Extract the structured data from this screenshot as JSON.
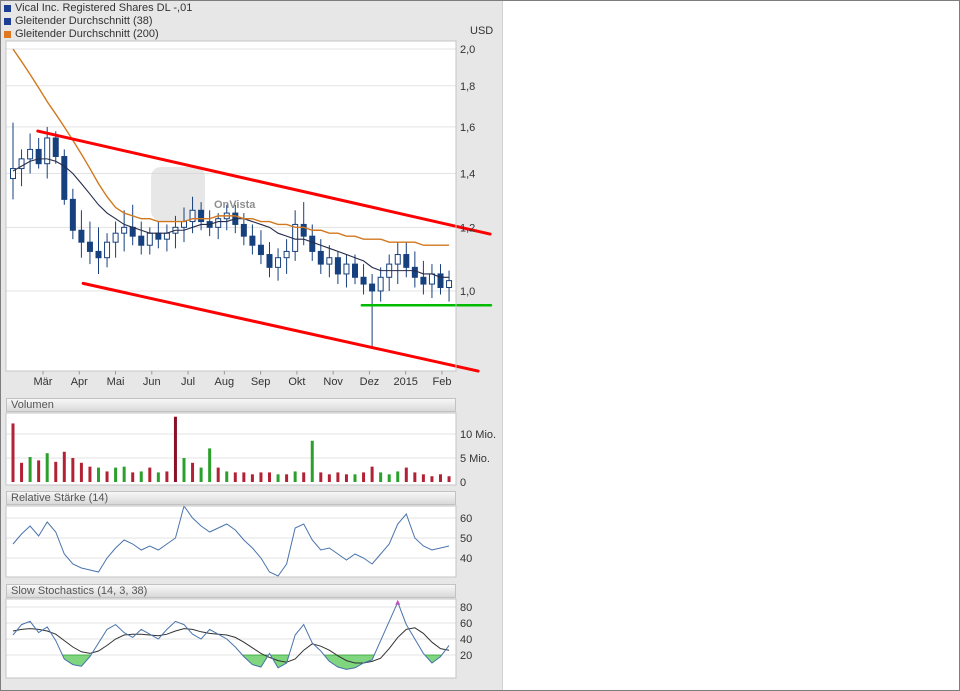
{
  "watermark": "OnVista",
  "legend": [
    {
      "label": "Vical Inc. Registered Shares DL -,01",
      "color": "#1c3f94"
    },
    {
      "label": "Gleitender Durchschnitt (38)",
      "color": "#1c3f94"
    },
    {
      "label": "Gleitender Durchschnitt (200)",
      "color": "#e07820"
    }
  ],
  "chart_data": {
    "type": "candlestick+indicators",
    "currency_label": "USD",
    "x_axis": {
      "month_labels": [
        "Mär",
        "Apr",
        "Mai",
        "Jun",
        "Jul",
        "Aug",
        "Sep",
        "Okt",
        "Nov",
        "Dez",
        "2015",
        "Feb"
      ]
    },
    "colors": {
      "candle": "#17407e",
      "candle_up_fill": "#ffffff",
      "ma38": "#252b4a",
      "ma200": "#d2781e",
      "grid": "#e3e3e3",
      "panel_border": "#c4c4c4",
      "rsi_line": "#4a74ad",
      "stoch_k": "#4a74ad",
      "stoch_d": "#333333",
      "stoch_fill": "#7fd67f",
      "stoch_fill_edge": "#2ca02c",
      "marker": "#c050c0"
    },
    "price_panel": {
      "scale": "log",
      "y_ticks": [
        "2,0",
        "1,8",
        "1,6",
        "1,4",
        "1,2",
        "1,0"
      ],
      "y_tick_values": [
        2.0,
        1.8,
        1.6,
        1.4,
        1.2,
        1.0
      ],
      "candles": [
        [
          1.38,
          1.62,
          1.3,
          1.42
        ],
        [
          1.42,
          1.5,
          1.35,
          1.46
        ],
        [
          1.46,
          1.57,
          1.4,
          1.5
        ],
        [
          1.5,
          1.55,
          1.42,
          1.44
        ],
        [
          1.44,
          1.6,
          1.38,
          1.55
        ],
        [
          1.55,
          1.58,
          1.44,
          1.47
        ],
        [
          1.47,
          1.5,
          1.28,
          1.3
        ],
        [
          1.3,
          1.34,
          1.16,
          1.19
        ],
        [
          1.19,
          1.26,
          1.1,
          1.15
        ],
        [
          1.15,
          1.22,
          1.08,
          1.12
        ],
        [
          1.12,
          1.2,
          1.05,
          1.1
        ],
        [
          1.1,
          1.18,
          1.07,
          1.15
        ],
        [
          1.15,
          1.22,
          1.1,
          1.18
        ],
        [
          1.18,
          1.26,
          1.12,
          1.2
        ],
        [
          1.2,
          1.28,
          1.14,
          1.17
        ],
        [
          1.17,
          1.22,
          1.11,
          1.14
        ],
        [
          1.14,
          1.2,
          1.11,
          1.18
        ],
        [
          1.18,
          1.22,
          1.13,
          1.16
        ],
        [
          1.16,
          1.21,
          1.12,
          1.18
        ],
        [
          1.18,
          1.24,
          1.13,
          1.2
        ],
        [
          1.2,
          1.27,
          1.15,
          1.22
        ],
        [
          1.22,
          1.31,
          1.18,
          1.26
        ],
        [
          1.26,
          1.29,
          1.19,
          1.22
        ],
        [
          1.22,
          1.26,
          1.17,
          1.2
        ],
        [
          1.2,
          1.25,
          1.16,
          1.23
        ],
        [
          1.23,
          1.28,
          1.19,
          1.25
        ],
        [
          1.25,
          1.28,
          1.18,
          1.21
        ],
        [
          1.21,
          1.25,
          1.14,
          1.17
        ],
        [
          1.17,
          1.21,
          1.11,
          1.14
        ],
        [
          1.14,
          1.19,
          1.08,
          1.11
        ],
        [
          1.11,
          1.15,
          1.04,
          1.07
        ],
        [
          1.07,
          1.13,
          1.03,
          1.1
        ],
        [
          1.1,
          1.16,
          1.05,
          1.12
        ],
        [
          1.12,
          1.26,
          1.09,
          1.21
        ],
        [
          1.21,
          1.29,
          1.14,
          1.17
        ],
        [
          1.17,
          1.21,
          1.09,
          1.12
        ],
        [
          1.12,
          1.16,
          1.05,
          1.08
        ],
        [
          1.08,
          1.14,
          1.04,
          1.1
        ],
        [
          1.1,
          1.12,
          1.02,
          1.05
        ],
        [
          1.05,
          1.11,
          1.01,
          1.08
        ],
        [
          1.08,
          1.11,
          1.02,
          1.04
        ],
        [
          1.04,
          1.08,
          0.99,
          1.02
        ],
        [
          1.02,
          1.05,
          0.85,
          1.0
        ],
        [
          1.0,
          1.07,
          0.97,
          1.04
        ],
        [
          1.04,
          1.11,
          1.0,
          1.08
        ],
        [
          1.08,
          1.15,
          1.02,
          1.11
        ],
        [
          1.11,
          1.15,
          1.04,
          1.07
        ],
        [
          1.07,
          1.12,
          1.01,
          1.04
        ],
        [
          1.04,
          1.09,
          0.99,
          1.02
        ],
        [
          1.02,
          1.08,
          0.98,
          1.05
        ],
        [
          1.05,
          1.08,
          0.99,
          1.01
        ],
        [
          1.01,
          1.06,
          0.97,
          1.03
        ]
      ],
      "ma38": [
        1.41,
        1.43,
        1.45,
        1.46,
        1.46,
        1.45,
        1.43,
        1.4,
        1.36,
        1.32,
        1.28,
        1.25,
        1.23,
        1.21,
        1.2,
        1.19,
        1.18,
        1.18,
        1.18,
        1.19,
        1.19,
        1.2,
        1.21,
        1.21,
        1.22,
        1.22,
        1.23,
        1.23,
        1.22,
        1.21,
        1.2,
        1.18,
        1.17,
        1.16,
        1.16,
        1.15,
        1.14,
        1.13,
        1.12,
        1.11,
        1.1,
        1.09,
        1.07,
        1.06,
        1.06,
        1.06,
        1.06,
        1.06,
        1.05,
        1.05,
        1.04,
        1.04
      ],
      "ma200": [
        2.0,
        1.93,
        1.86,
        1.79,
        1.72,
        1.66,
        1.6,
        1.54,
        1.48,
        1.42,
        1.36,
        1.31,
        1.27,
        1.25,
        1.24,
        1.23,
        1.23,
        1.22,
        1.22,
        1.22,
        1.22,
        1.23,
        1.23,
        1.23,
        1.24,
        1.24,
        1.24,
        1.23,
        1.23,
        1.22,
        1.22,
        1.21,
        1.21,
        1.2,
        1.2,
        1.19,
        1.19,
        1.18,
        1.18,
        1.17,
        1.17,
        1.16,
        1.16,
        1.16,
        1.15,
        1.15,
        1.15,
        1.15,
        1.14,
        1.14,
        1.14,
        1.14
      ],
      "trendlines": [
        {
          "name": "upper-channel-line",
          "color": "#ff0000",
          "width": 3,
          "i1": 2.9,
          "p1": 1.581,
          "i2": 55.8,
          "p2": 1.177
        },
        {
          "name": "lower-channel-line",
          "color": "#ff0000",
          "width": 3,
          "i1": 8.2,
          "p1": 1.022,
          "i2": 54.4,
          "p2": 0.795
        },
        {
          "name": "support-line",
          "color": "#00bb00",
          "width": 2.5,
          "i1": 40.8,
          "p1": 0.96,
          "i2": 55.9,
          "p2": 0.96
        }
      ]
    },
    "volume_panel": {
      "title": "Volumen",
      "y_ticks": [
        "10 Mio.",
        "5 Mio.",
        "0"
      ],
      "y_tick_values": [
        10,
        5,
        0
      ],
      "values": [
        12.2,
        4.0,
        5.2,
        4.5,
        6.0,
        4.2,
        6.3,
        5.0,
        4.0,
        3.2,
        3.0,
        2.2,
        3.0,
        3.2,
        2.0,
        2.2,
        3.0,
        2.0,
        2.2,
        13.6,
        5.0,
        4.0,
        3.0,
        7.0,
        3.0,
        2.2,
        2.0,
        2.0,
        1.6,
        2.0,
        2.0,
        1.6,
        1.6,
        2.2,
        2.0,
        8.6,
        2.0,
        1.6,
        2.0,
        1.6,
        1.6,
        2.0,
        3.2,
        2.0,
        1.6,
        2.2,
        3.0,
        2.0,
        1.6,
        1.2,
        1.6,
        1.2
      ],
      "colors": [
        "#b22234",
        "#b22234",
        "#2ca02c",
        "#b22234",
        "#2ca02c",
        "#b22234",
        "#b22234",
        "#b22234",
        "#b22234",
        "#b22234",
        "#2ca02c",
        "#b22234",
        "#2ca02c",
        "#2ca02c",
        "#b22234",
        "#2ca02c",
        "#b22234",
        "#2ca02c",
        "#b22234",
        "#8b0f26",
        "#2ca02c",
        "#b22234",
        "#2ca02c",
        "#2ca02c",
        "#b22234",
        "#2ca02c",
        "#b22234",
        "#b22234",
        "#b22234",
        "#b22234",
        "#b22234",
        "#2ca02c",
        "#b22234",
        "#2ca02c",
        "#b22234",
        "#2ca02c",
        "#b22234",
        "#b22234",
        "#b22234",
        "#b22234",
        "#2ca02c",
        "#b22234",
        "#b22234",
        "#2ca02c",
        "#2ca02c",
        "#2ca02c",
        "#b22234",
        "#b22234",
        "#b22234",
        "#b22234",
        "#b22234",
        "#b22234"
      ]
    },
    "rsi_panel": {
      "title": "Relative Stärke (14)",
      "y_ticks": [
        "60",
        "50",
        "40"
      ],
      "y_tick_values": [
        60,
        50,
        40
      ],
      "values": [
        47,
        52,
        56,
        51,
        58,
        53,
        42,
        37,
        35,
        34,
        33,
        40,
        45,
        49,
        47,
        44,
        46,
        44,
        47,
        50,
        66,
        60,
        56,
        53,
        55,
        57,
        54,
        49,
        45,
        40,
        33,
        31,
        37,
        55,
        57,
        49,
        44,
        45,
        42,
        39,
        42,
        40,
        37,
        42,
        47,
        57,
        62,
        50,
        46,
        44,
        45,
        46
      ]
    },
    "stoch_panel": {
      "title": "Slow Stochastics (14, 3, 38)",
      "y_ticks": [
        "80",
        "60",
        "40",
        "20"
      ],
      "y_tick_values": [
        80,
        60,
        40,
        20
      ],
      "oversold_threshold": 20,
      "k": [
        45,
        58,
        62,
        48,
        55,
        38,
        15,
        8,
        6,
        18,
        35,
        52,
        58,
        48,
        42,
        52,
        46,
        40,
        52,
        62,
        58,
        46,
        40,
        52,
        46,
        40,
        30,
        18,
        8,
        5,
        22,
        4,
        10,
        45,
        58,
        35,
        25,
        12,
        5,
        2,
        4,
        10,
        14,
        38,
        62,
        86,
        58,
        40,
        22,
        10,
        18,
        32
      ],
      "d": [
        50,
        52,
        53,
        52,
        50,
        46,
        38,
        30,
        24,
        22,
        25,
        32,
        40,
        45,
        46,
        46,
        45,
        44,
        46,
        50,
        53,
        52,
        49,
        47,
        46,
        45,
        42,
        36,
        29,
        22,
        17,
        13,
        11,
        15,
        26,
        34,
        31,
        26,
        19,
        13,
        10,
        10,
        12,
        16,
        28,
        42,
        52,
        54,
        47,
        36,
        28,
        26
      ],
      "marker": {
        "index": 45,
        "value": 89,
        "color": "#c050c0"
      }
    }
  }
}
